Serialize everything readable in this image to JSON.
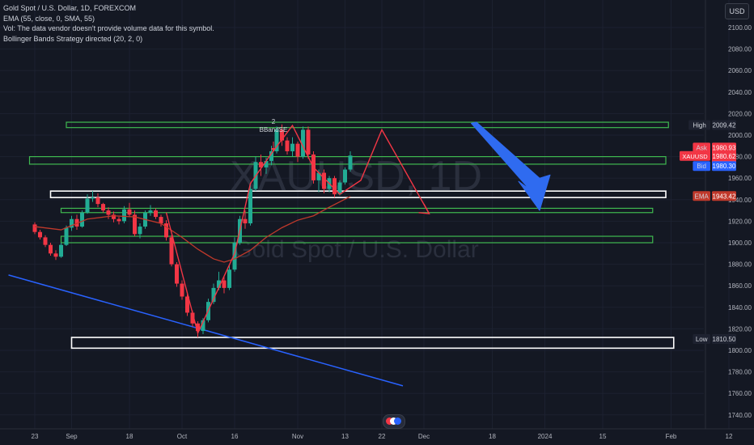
{
  "legend": {
    "symbol": "Gold Spot / U.S. Dollar, 1D, FOREXCOM",
    "ema": "EMA (55, close, 0, SMA, 55)",
    "vol": "Vol: The data vendor doesn't provide volume data for this symbol.",
    "strategy": "Bollinger Bands Strategy directed (20, 2, 0)"
  },
  "currency_button": "USD",
  "watermark": {
    "ticker": "XAUUSD, 1D",
    "name": "Gold Spot / U.S. Dollar"
  },
  "signal_labels": {
    "count": "2",
    "name": "BBandSE"
  },
  "colors": {
    "background": "#141823",
    "up": "#22ab94",
    "down": "#f23645",
    "ema": "#c0392b",
    "zone_green": "#3fb950",
    "zone_white": "#ffffff",
    "pattern_red": "#f23645",
    "trendline_blue": "#2962ff",
    "arrow_blue": "#2f6bf0"
  },
  "chart_data": {
    "type": "candlestick",
    "instrument": "Gold Spot / U.S. Dollar",
    "interval": "1D",
    "ylim": [
      1730,
      2130
    ],
    "y_ticks": [
      2100,
      2080,
      2060,
      2040,
      2020,
      2000,
      1980,
      1960,
      1940,
      1920,
      1900,
      1880,
      1860,
      1840,
      1820,
      1800,
      1780,
      1760,
      1740
    ],
    "y_tick_labels": [
      "2100.00",
      "2080.00",
      "2060.00",
      "2040.00",
      "2020.00",
      "2000.00",
      "1980.00",
      "1960.00",
      "1940.00",
      "1920.00",
      "1900.00",
      "1880.00",
      "1860.00",
      "1840.00",
      "1820.00",
      "1800.00",
      "1780.00",
      "1760.00",
      "1740.00"
    ],
    "x_labels": [
      {
        "label": "23",
        "idx": 0
      },
      {
        "label": "Sep",
        "idx": 7
      },
      {
        "label": "18",
        "idx": 18
      },
      {
        "label": "Oct",
        "idx": 28
      },
      {
        "label": "16",
        "idx": 38
      },
      {
        "label": "Nov",
        "idx": 50
      },
      {
        "label": "13",
        "idx": 59
      },
      {
        "label": "22",
        "idx": 66
      },
      {
        "label": "Dec",
        "idx": 74
      },
      {
        "label": "18",
        "idx": 87
      },
      {
        "label": "2024",
        "idx": 97
      },
      {
        "label": "15",
        "idx": 108
      },
      {
        "label": "Feb",
        "idx": 121
      },
      {
        "label": "12",
        "idx": 132
      }
    ],
    "candles": [
      [
        1917,
        1919,
        1908,
        1910
      ],
      [
        1910,
        1912,
        1903,
        1905
      ],
      [
        1905,
        1907,
        1896,
        1898
      ],
      [
        1898,
        1900,
        1888,
        1890
      ],
      [
        1890,
        1893,
        1884,
        1887
      ],
      [
        1887,
        1900,
        1886,
        1898
      ],
      [
        1898,
        1916,
        1897,
        1914
      ],
      [
        1914,
        1925,
        1911,
        1922
      ],
      [
        1922,
        1926,
        1912,
        1915
      ],
      [
        1915,
        1930,
        1914,
        1928
      ],
      [
        1928,
        1945,
        1927,
        1941
      ],
      [
        1941,
        1948,
        1938,
        1942
      ],
      [
        1942,
        1946,
        1933,
        1936
      ],
      [
        1936,
        1937,
        1928,
        1930
      ],
      [
        1930,
        1933,
        1922,
        1926
      ],
      [
        1926,
        1929,
        1919,
        1922
      ],
      [
        1922,
        1924,
        1917,
        1920
      ],
      [
        1920,
        1934,
        1918,
        1931
      ],
      [
        1931,
        1937,
        1924,
        1926
      ],
      [
        1926,
        1930,
        1906,
        1908
      ],
      [
        1908,
        1918,
        1904,
        1915
      ],
      [
        1915,
        1930,
        1913,
        1928
      ],
      [
        1928,
        1935,
        1925,
        1930
      ],
      [
        1930,
        1932,
        1922,
        1924
      ],
      [
        1924,
        1926,
        1915,
        1918
      ],
      [
        1918,
        1921,
        1902,
        1905
      ],
      [
        1905,
        1907,
        1878,
        1880
      ],
      [
        1880,
        1882,
        1859,
        1862
      ],
      [
        1862,
        1865,
        1847,
        1850
      ],
      [
        1850,
        1852,
        1832,
        1835
      ],
      [
        1835,
        1837,
        1822,
        1825
      ],
      [
        1825,
        1827,
        1812,
        1818
      ],
      [
        1818,
        1830,
        1815,
        1828
      ],
      [
        1828,
        1848,
        1826,
        1845
      ],
      [
        1845,
        1862,
        1843,
        1858
      ],
      [
        1858,
        1873,
        1856,
        1865
      ],
      [
        1865,
        1868,
        1853,
        1858
      ],
      [
        1858,
        1880,
        1856,
        1875
      ],
      [
        1875,
        1905,
        1873,
        1900
      ],
      [
        1900,
        1925,
        1898,
        1922
      ],
      [
        1922,
        1930,
        1913,
        1918
      ],
      [
        1918,
        1955,
        1916,
        1950
      ],
      [
        1950,
        1980,
        1948,
        1975
      ],
      [
        1975,
        1982,
        1962,
        1970
      ],
      [
        1970,
        1979,
        1964,
        1976
      ],
      [
        1976,
        1990,
        1972,
        1985
      ],
      [
        1985,
        2008,
        1983,
        2005
      ],
      [
        2005,
        2010,
        1990,
        1995
      ],
      [
        1995,
        1998,
        1982,
        1985
      ],
      [
        1985,
        1998,
        1980,
        1992
      ],
      [
        1992,
        1994,
        1975,
        1980
      ],
      [
        1980,
        2008,
        1978,
        2005
      ],
      [
        2005,
        2008,
        1978,
        1982
      ],
      [
        1982,
        1985,
        1955,
        1958
      ],
      [
        1958,
        1968,
        1947,
        1965
      ],
      [
        1965,
        1968,
        1946,
        1950
      ],
      [
        1950,
        1962,
        1947,
        1960
      ],
      [
        1960,
        1962,
        1942,
        1945
      ],
      [
        1945,
        1958,
        1944,
        1956
      ],
      [
        1956,
        1970,
        1954,
        1968
      ],
      [
        1968,
        1985,
        1966,
        1981
      ]
    ],
    "ema": [
      [
        0,
        1915
      ],
      [
        5,
        1912
      ],
      [
        10,
        1922
      ],
      [
        15,
        1925
      ],
      [
        19,
        1924
      ],
      [
        24,
        1918
      ],
      [
        28,
        1905
      ],
      [
        31,
        1894
      ],
      [
        34,
        1885
      ],
      [
        36,
        1882
      ],
      [
        38,
        1885
      ],
      [
        41,
        1893
      ],
      [
        44,
        1905
      ],
      [
        47,
        1914
      ],
      [
        50,
        1921
      ],
      [
        53,
        1925
      ],
      [
        56,
        1933
      ],
      [
        60,
        1943
      ]
    ],
    "high_label": "High",
    "high_value": "2009.42",
    "ask_label": "Ask",
    "ask_value": "1980.93",
    "symbol_label": "XAUUSD",
    "last_value": "1980.62",
    "countdown": "19:44:54",
    "bid_label": "Bid",
    "bid_value": "1980.30",
    "ema_label": "EMA",
    "ema_value": "1943.42",
    "low_label": "Low",
    "low_value": "1810.50",
    "zones": [
      {
        "color": "green",
        "price": [
          2007,
          2012
        ],
        "x": [
          6,
          120.5
        ]
      },
      {
        "color": "green",
        "price": [
          1973,
          1980
        ],
        "x": [
          -1,
          120
        ]
      },
      {
        "color": "white",
        "price": [
          1942,
          1948
        ],
        "x": [
          3,
          120
        ]
      },
      {
        "color": "green",
        "price": [
          1928,
          1932
        ],
        "x": [
          5,
          117.5
        ]
      },
      {
        "color": "green",
        "price": [
          1900,
          1906
        ],
        "x": [
          5,
          117.5
        ]
      },
      {
        "color": "white",
        "price": [
          1802,
          1812
        ],
        "x": [
          7,
          121.5
        ]
      }
    ],
    "pattern_line": [
      [
        25,
        1928
      ],
      [
        31,
        1816
      ],
      [
        38,
        1890
      ],
      [
        41,
        1955
      ],
      [
        45,
        1983
      ],
      [
        49,
        2009
      ],
      [
        53,
        1970
      ],
      [
        58,
        1945
      ],
      [
        62,
        1958
      ],
      [
        66,
        2005
      ],
      [
        75,
        1927
      ]
    ],
    "pattern_arrowhead": [
      [
        75,
        1927
      ],
      [
        73,
        1928
      ],
      [
        74,
        1936
      ]
    ],
    "trendline": [
      [
        -5,
        1870
      ],
      [
        70,
        1767
      ]
    ],
    "big_arrow": [
      [
        83,
        2011
      ],
      [
        94,
        1950
      ],
      [
        92,
        1957
      ],
      [
        96,
        1930
      ],
      [
        98,
        1963
      ],
      [
        96,
        1960
      ],
      [
        84,
        2012
      ]
    ]
  }
}
